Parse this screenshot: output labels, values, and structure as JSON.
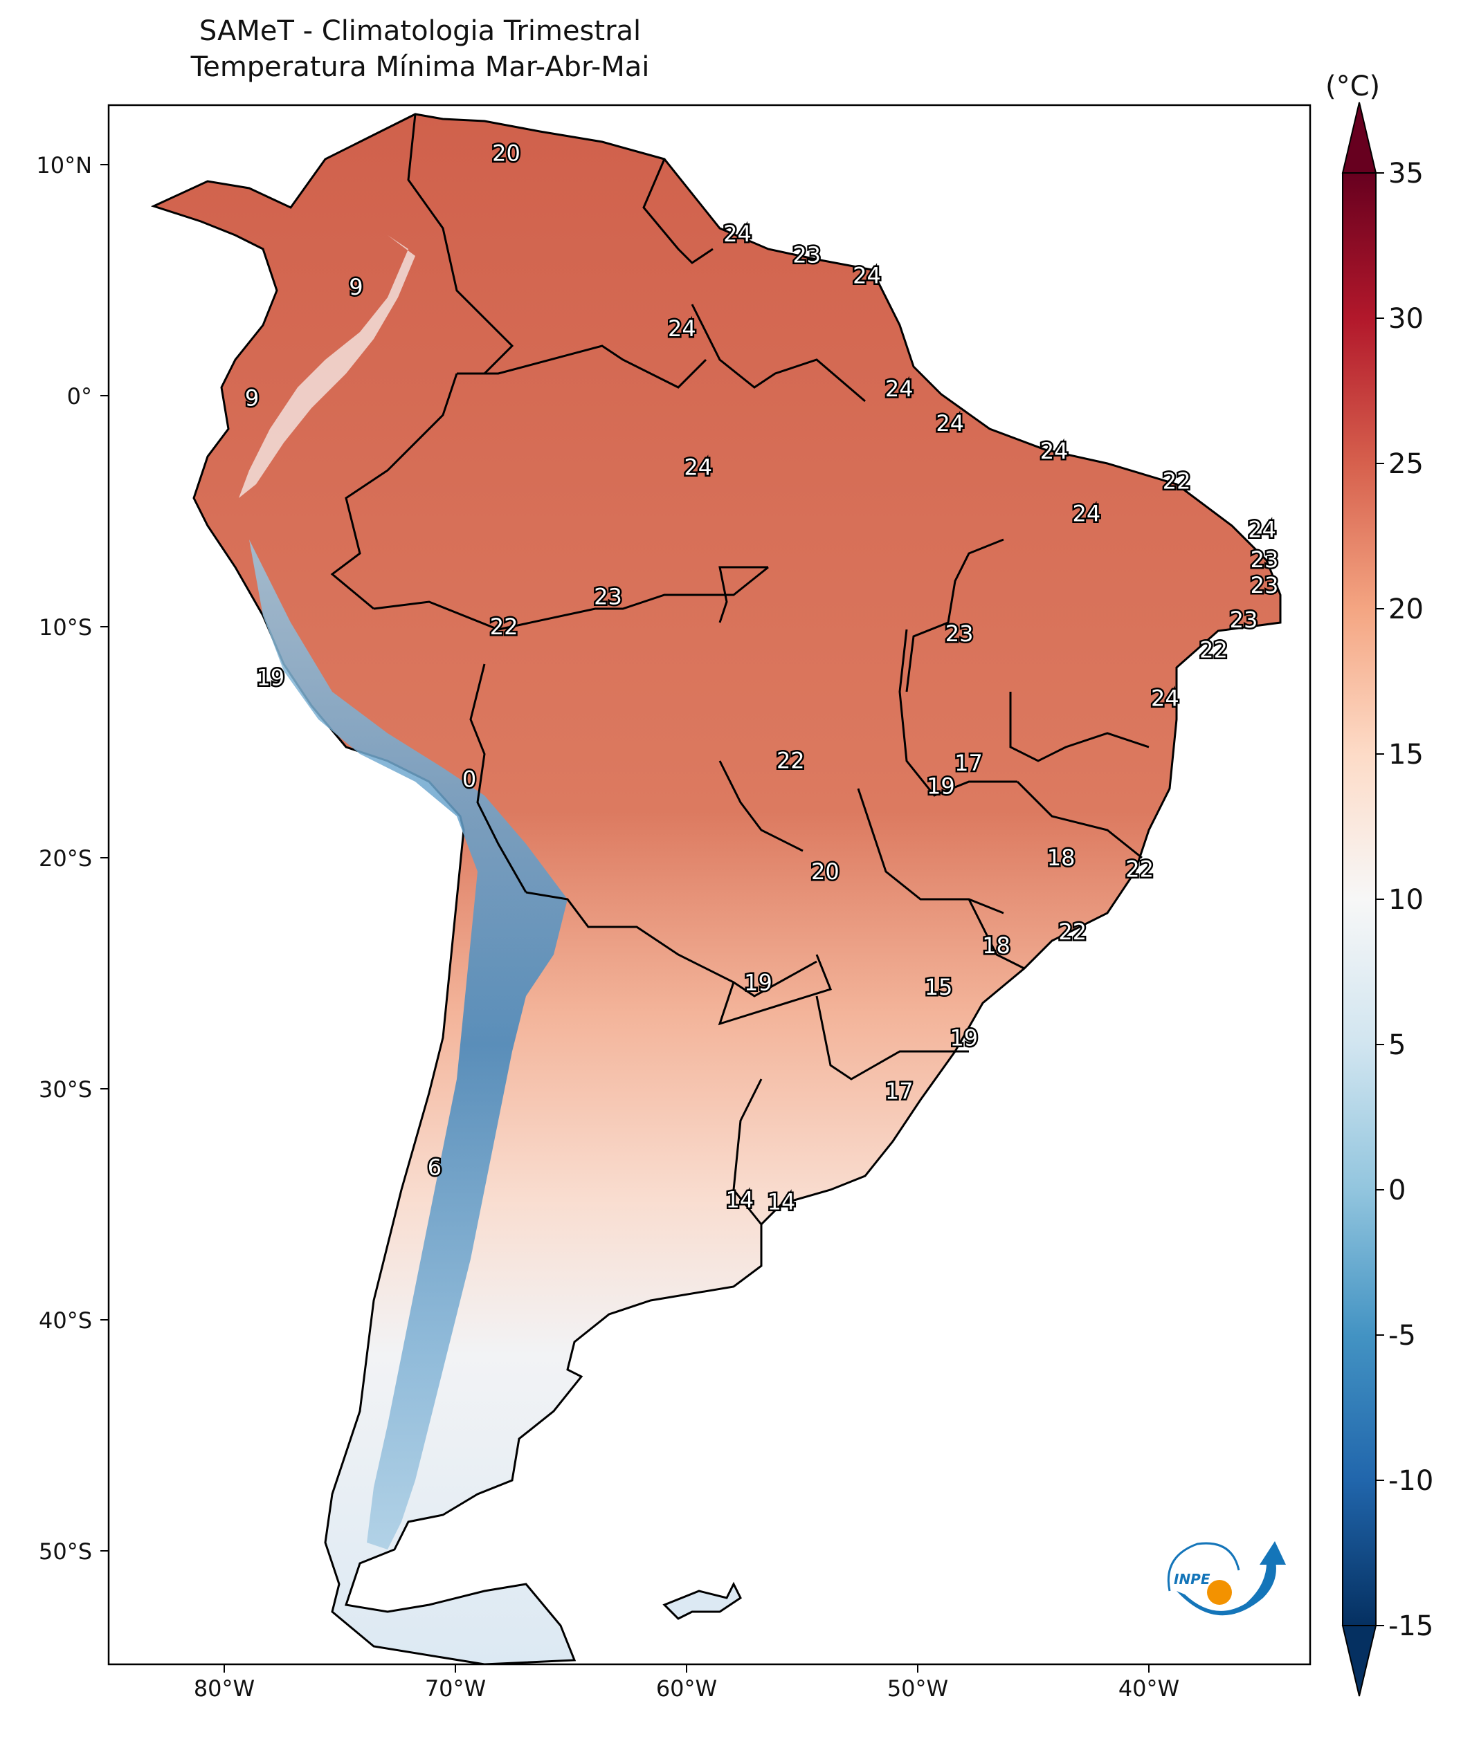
{
  "title": {
    "line1": "SAMeT - Climatologia Trimestral",
    "line2": "Temperatura Mínima   Mar-Abr-Mai"
  },
  "colorbar": {
    "unit": "(°C)",
    "ticks": [
      "35",
      "30",
      "25",
      "20",
      "15",
      "10",
      "5",
      "0",
      "-5",
      "-10",
      "-15"
    ],
    "range": [
      -15,
      35
    ],
    "colors": [
      "#053061",
      "#2166ac",
      "#4393c3",
      "#92c5de",
      "#d1e5f0",
      "#f7f7f7",
      "#fddbc7",
      "#f4a582",
      "#d6604d",
      "#b2182b",
      "#67001f"
    ]
  },
  "axes": {
    "lon_labels": [
      "80°W",
      "70°W",
      "60°W",
      "50°W",
      "40°W"
    ],
    "lat_labels": [
      "10°N",
      "0°",
      "10°S",
      "20°S",
      "30°S",
      "40°S",
      "50°S"
    ]
  },
  "map_labels": [
    {
      "text": "20",
      "lon": -67.8,
      "lat": 10.5
    },
    {
      "text": "9",
      "lon": -74.3,
      "lat": 4.7
    },
    {
      "text": "9",
      "lon": -78.8,
      "lat": -0.1
    },
    {
      "text": "24",
      "lon": -57.8,
      "lat": 7.0
    },
    {
      "text": "23",
      "lon": -54.8,
      "lat": 6.1
    },
    {
      "text": "24",
      "lon": -52.2,
      "lat": 5.2
    },
    {
      "text": "24",
      "lon": -60.2,
      "lat": 2.9
    },
    {
      "text": "24",
      "lon": -50.8,
      "lat": 0.3
    },
    {
      "text": "24",
      "lon": -48.6,
      "lat": -1.2
    },
    {
      "text": "24",
      "lon": -44.1,
      "lat": -2.4
    },
    {
      "text": "22",
      "lon": -38.8,
      "lat": -3.7
    },
    {
      "text": "24",
      "lon": -59.5,
      "lat": -3.1
    },
    {
      "text": "24",
      "lon": -42.7,
      "lat": -5.1
    },
    {
      "text": "24",
      "lon": -35.1,
      "lat": -5.8
    },
    {
      "text": "23",
      "lon": -35.0,
      "lat": -7.1
    },
    {
      "text": "23",
      "lon": -35.0,
      "lat": -8.2
    },
    {
      "text": "23",
      "lon": -35.9,
      "lat": -9.7
    },
    {
      "text": "22",
      "lon": -37.2,
      "lat": -11.0
    },
    {
      "text": "24",
      "lon": -39.3,
      "lat": -13.1
    },
    {
      "text": "23",
      "lon": -63.4,
      "lat": -8.7
    },
    {
      "text": "22",
      "lon": -67.9,
      "lat": -10.0
    },
    {
      "text": "23",
      "lon": -48.2,
      "lat": -10.3
    },
    {
      "text": "19",
      "lon": -78.0,
      "lat": -12.2
    },
    {
      "text": "17",
      "lon": -47.8,
      "lat": -15.9
    },
    {
      "text": "19",
      "lon": -49.0,
      "lat": -16.9
    },
    {
      "text": "22",
      "lon": -55.5,
      "lat": -15.8
    },
    {
      "text": "0",
      "lon": -69.4,
      "lat": -16.6
    },
    {
      "text": "18",
      "lon": -43.8,
      "lat": -20.0
    },
    {
      "text": "22",
      "lon": -40.4,
      "lat": -20.5
    },
    {
      "text": "20",
      "lon": -54.0,
      "lat": -20.6
    },
    {
      "text": "22",
      "lon": -43.3,
      "lat": -23.2
    },
    {
      "text": "18",
      "lon": -46.6,
      "lat": -23.8
    },
    {
      "text": "19",
      "lon": -56.9,
      "lat": -25.4
    },
    {
      "text": "15",
      "lon": -49.1,
      "lat": -25.6
    },
    {
      "text": "19",
      "lon": -48.0,
      "lat": -27.8
    },
    {
      "text": "17",
      "lon": -50.8,
      "lat": -30.1
    },
    {
      "text": "6",
      "lon": -70.9,
      "lat": -33.4
    },
    {
      "text": "14",
      "lon": -57.7,
      "lat": -34.8
    },
    {
      "text": "14",
      "lon": -55.9,
      "lat": -34.9
    }
  ],
  "logo": {
    "text": "INPE"
  }
}
